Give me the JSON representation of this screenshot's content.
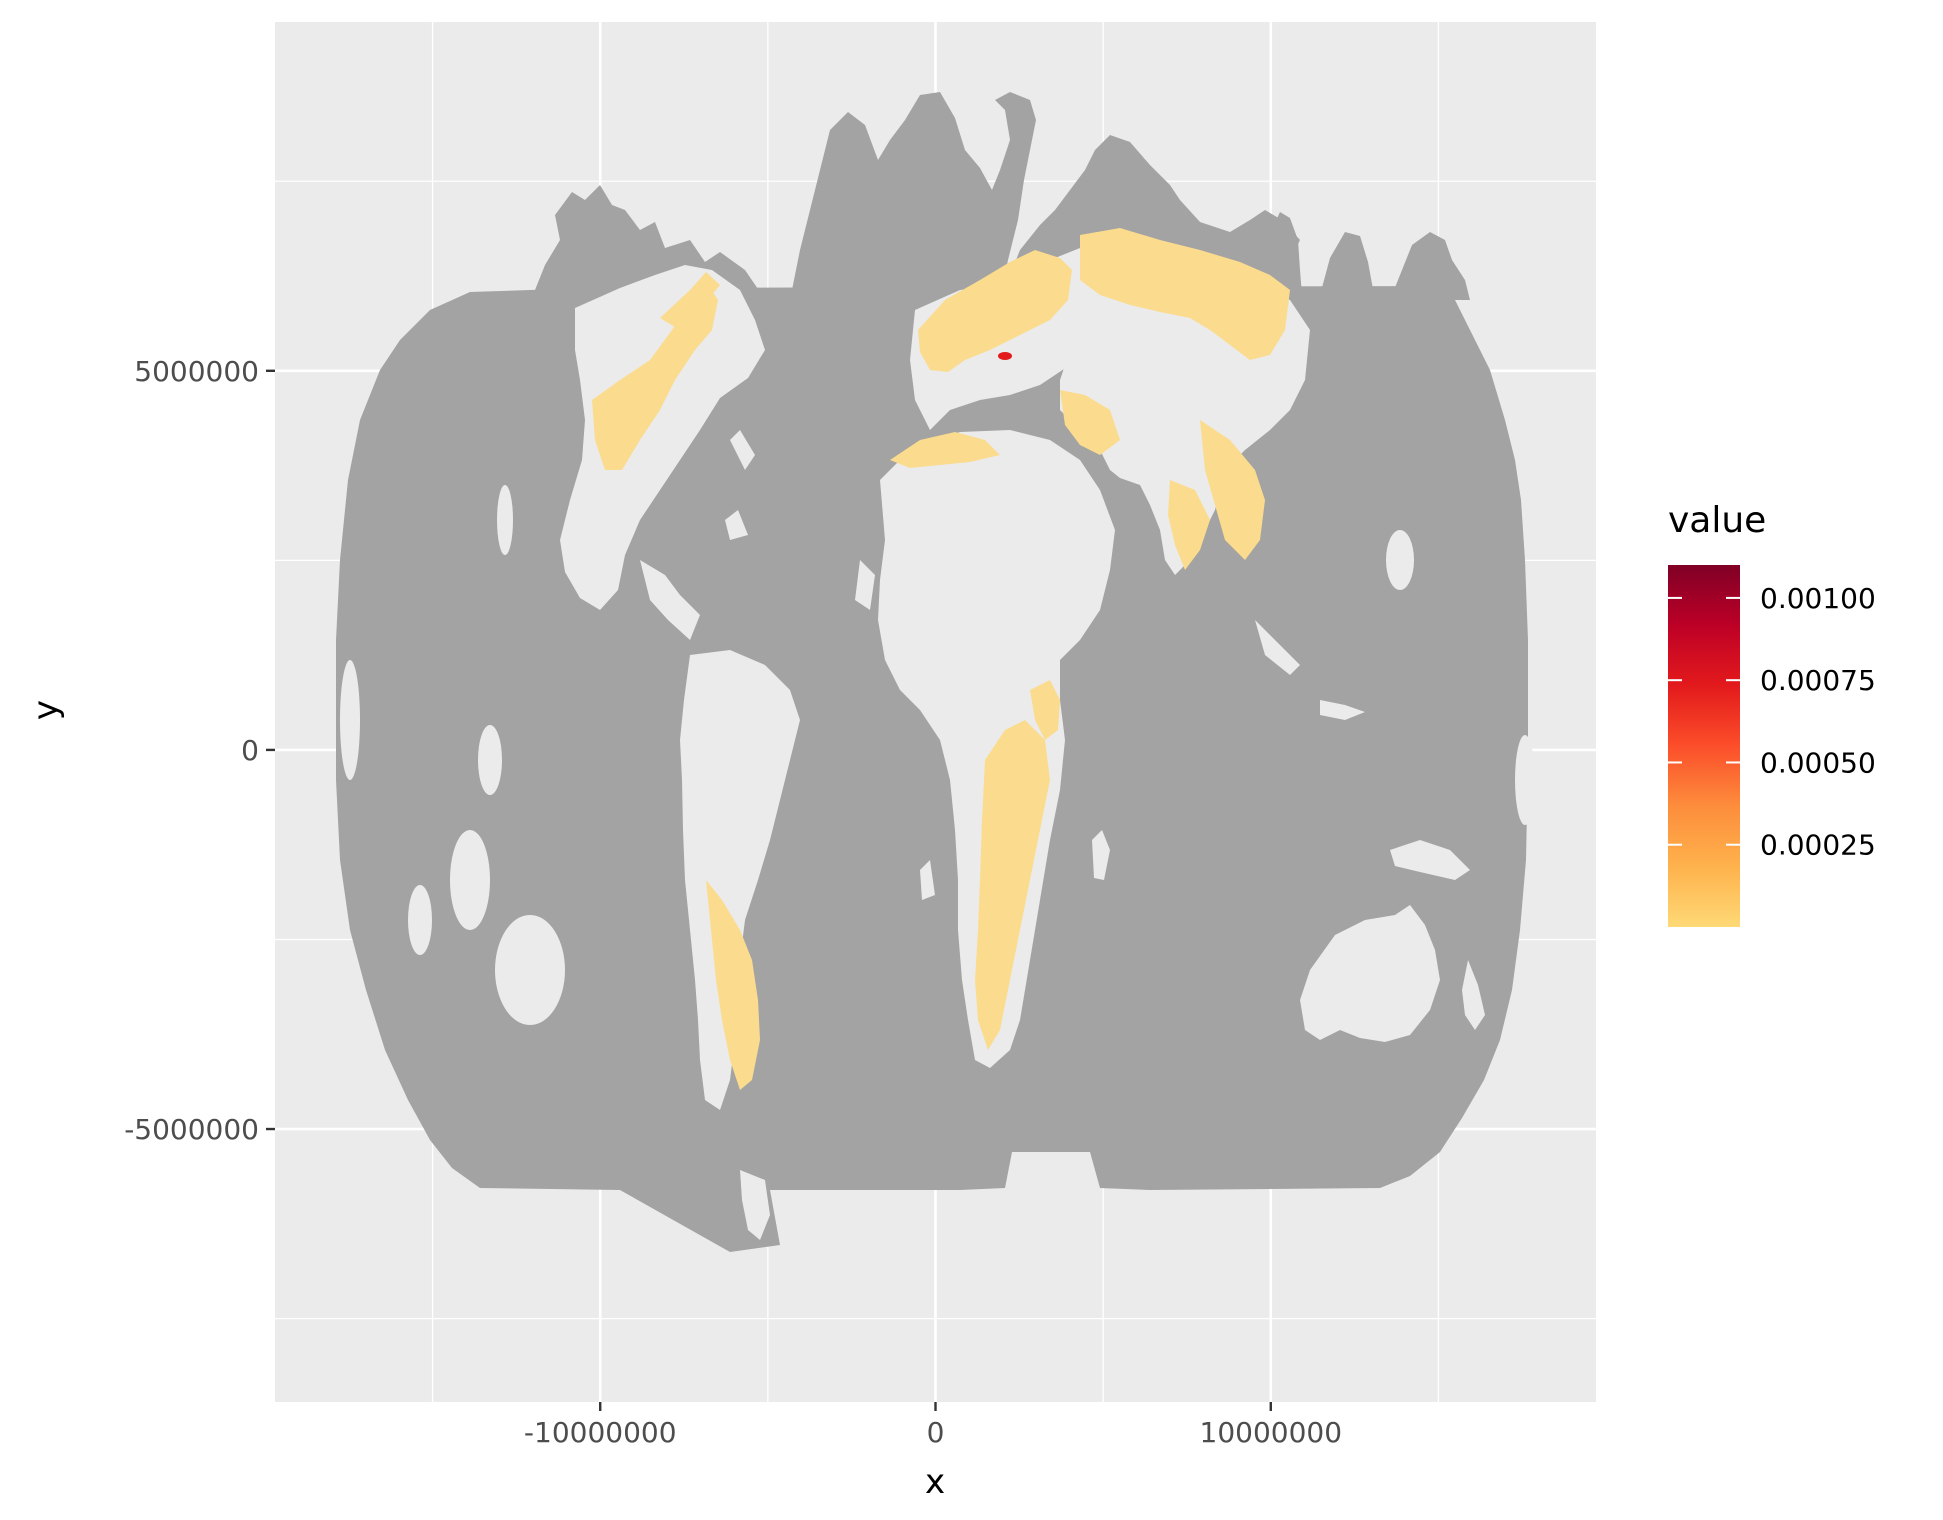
{
  "chart_data": {
    "type": "heatmap",
    "xlabel": "x",
    "ylabel": "y",
    "x_ticks": [
      {
        "value": -10000000,
        "label": "-10000000"
      },
      {
        "value": 0,
        "label": "0"
      },
      {
        "value": 10000000,
        "label": "10000000"
      }
    ],
    "y_ticks": [
      {
        "value": 5000000,
        "label": "5000000"
      },
      {
        "value": 0,
        "label": "0"
      },
      {
        "value": -5000000,
        "label": "-5000000"
      }
    ],
    "xlim": [
      -19700000,
      19700000
    ],
    "ylim": [
      -8600000,
      9600000
    ],
    "grid": true,
    "legend": {
      "title": "value",
      "position": "right",
      "range": [
        0,
        0.0011
      ],
      "ticks": [
        {
          "value": 0.00025,
          "label": "0.00025"
        },
        {
          "value": 0.0005,
          "label": "0.00050"
        },
        {
          "value": 0.00075,
          "label": "0.00075"
        },
        {
          "value": 0.001,
          "label": "0.00100"
        }
      ],
      "colors": [
        "#fed976",
        "#feb24c",
        "#fd8d3c",
        "#fc4e2a",
        "#e31a1c",
        "#bd0026",
        "#800026"
      ]
    },
    "colors": {
      "panel_background": "#ebebeb",
      "grid_line": "#ffffff",
      "na_fill": "#a3a3a3",
      "land_background": "#ebebeb",
      "low_value_fill": "#fbdc8e"
    }
  }
}
